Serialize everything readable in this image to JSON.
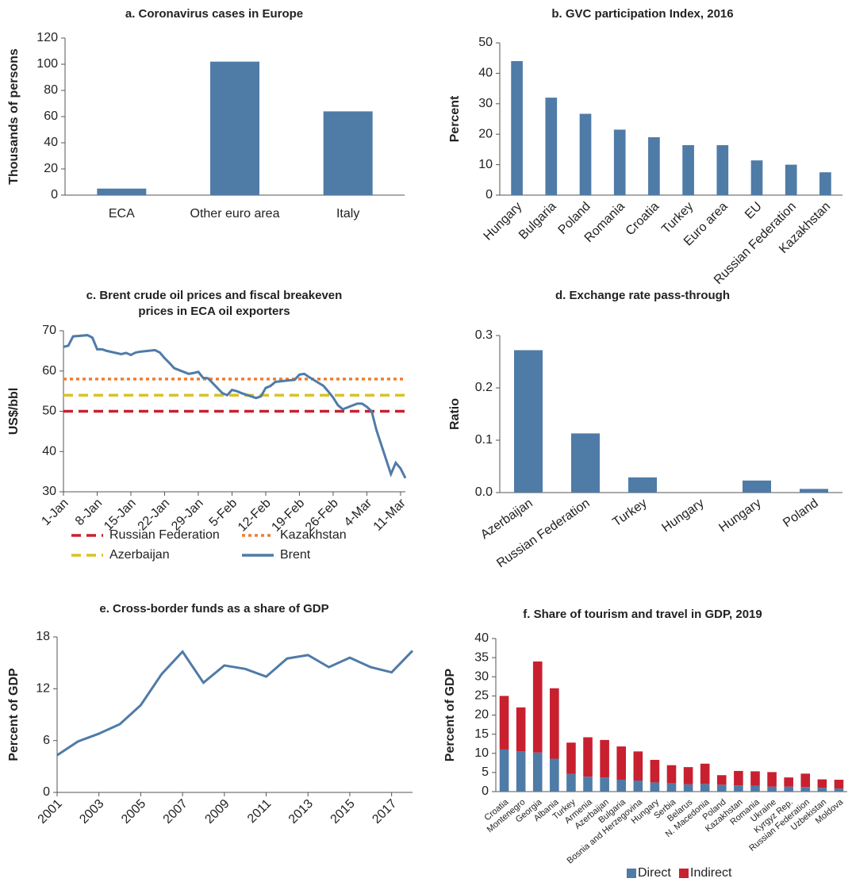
{
  "chart_data": [
    {
      "type": "bar",
      "title": "a. Coronavirus cases in Europe",
      "y_label": "Thousands of persons",
      "categories": [
        "ECA",
        "Other euro area",
        "Italy"
      ],
      "values": [
        5,
        102,
        64
      ],
      "color": "#4f7ba7",
      "ylim": [
        0,
        120
      ],
      "yticks": [
        0,
        20,
        40,
        60,
        80,
        100,
        120
      ]
    },
    {
      "type": "bar",
      "title": "b. GVC participation Index, 2016",
      "y_label": "Percent",
      "categories": [
        "Hungary",
        "Bulgaria",
        "Poland",
        "Romania",
        "Croatia",
        "Turkey",
        "Euro area",
        "EU",
        "Russian Federation",
        "Kazakhstan"
      ],
      "values": [
        44,
        32,
        26.7,
        21.5,
        19,
        16.4,
        16.4,
        11.4,
        10,
        7.5
      ],
      "color": "#4f7ba7",
      "ylim": [
        0,
        50
      ],
      "yticks": [
        0,
        10,
        20,
        30,
        40,
        50
      ]
    },
    {
      "type": "line",
      "title": "c. Brent crude oil prices and fiscal breakeven prices in ECA oil exporters",
      "y_label": "US$/bbl",
      "xlim": [
        "1-Jan",
        "12-Mar"
      ],
      "xticks": [
        "1-Jan",
        "8-Jan",
        "15-Jan",
        "22-Jan",
        "29-Jan",
        "5-Feb",
        "12-Feb",
        "19-Feb",
        "26-Feb",
        "4-Mar",
        "11-Mar"
      ],
      "ylim": [
        30,
        70
      ],
      "yticks": [
        30,
        40,
        50,
        60,
        70
      ],
      "series": [
        {
          "name": "Russian Federation",
          "color": "#c8202f",
          "style": "dashed",
          "x": [
            "1-Jan",
            "12-Mar"
          ],
          "values": [
            50,
            50
          ]
        },
        {
          "name": "Kazakhstan",
          "color": "#ef7d31",
          "style": "dotted",
          "x": [
            "1-Jan",
            "12-Mar"
          ],
          "values": [
            58,
            58
          ]
        },
        {
          "name": "Azerbaijan",
          "color": "#d9c324",
          "style": "dashed",
          "x": [
            "1-Jan",
            "12-Mar"
          ],
          "values": [
            54,
            54
          ]
        },
        {
          "name": "Brent",
          "color": "#4f7ba7",
          "style": "solid",
          "x": [
            "1-Jan",
            "2-Jan",
            "3-Jan",
            "6-Jan",
            "7-Jan",
            "8-Jan",
            "9-Jan",
            "10-Jan",
            "13-Jan",
            "14-Jan",
            "15-Jan",
            "16-Jan",
            "17-Jan",
            "20-Jan",
            "21-Jan",
            "22-Jan",
            "23-Jan",
            "24-Jan",
            "27-Jan",
            "28-Jan",
            "29-Jan",
            "30-Jan",
            "31-Jan",
            "3-Feb",
            "4-Feb",
            "5-Feb",
            "6-Feb",
            "7-Feb",
            "10-Feb",
            "11-Feb",
            "12-Feb",
            "13-Feb",
            "14-Feb",
            "17-Feb",
            "18-Feb",
            "19-Feb",
            "20-Feb",
            "21-Feb",
            "24-Feb",
            "25-Feb",
            "26-Feb",
            "27-Feb",
            "28-Feb",
            "2-Mar",
            "3-Mar",
            "4-Mar",
            "5-Mar",
            "6-Mar",
            "9-Mar",
            "10-Mar",
            "11-Mar",
            "12-Mar"
          ],
          "values": [
            66,
            66.3,
            68.6,
            68.9,
            68.3,
            65.4,
            65.4,
            65.0,
            64.2,
            64.5,
            64.0,
            64.6,
            64.8,
            65.2,
            64.6,
            63.2,
            62.0,
            60.7,
            59.3,
            59.5,
            59.8,
            58.3,
            58.2,
            54.5,
            54.0,
            55.3,
            55.0,
            54.5,
            53.3,
            53.7,
            55.8,
            56.3,
            57.3,
            57.7,
            57.8,
            59.1,
            59.3,
            58.5,
            56.3,
            54.9,
            53.4,
            51.5,
            50.5,
            51.9,
            51.9,
            51.1,
            50.0,
            45.3,
            34.4,
            37.2,
            35.8,
            33.4
          ]
        }
      ]
    },
    {
      "type": "bar",
      "title": "d. Exchange rate pass-through",
      "y_label": "Ratio",
      "categories": [
        "Azerbaijan",
        "Russian Federation",
        "Turkey",
        "Hungary",
        "Hungary",
        "Poland"
      ],
      "values": [
        0.272,
        0.113,
        0.029,
        0,
        0.023,
        0.007
      ],
      "color": "#4f7ba7",
      "ylim": [
        0,
        0.3
      ],
      "yticks": [
        {
          "value": 0,
          "label": "0.0"
        },
        0.1,
        0.2,
        0.3
      ]
    },
    {
      "type": "line",
      "title": "e. Cross-border funds as a share of GDP",
      "y_label": "Percent of GDP",
      "xlim": [
        2001,
        2018
      ],
      "xticks": [
        2001,
        2003,
        2005,
        2007,
        2009,
        2011,
        2013,
        2015,
        2017
      ],
      "ylim": [
        0,
        18
      ],
      "yticks": [
        0,
        6,
        12,
        18
      ],
      "series": [
        {
          "color": "#4f7ba7",
          "style": "solid",
          "x": [
            2001,
            2002,
            2003,
            2004,
            2005,
            2006,
            2007,
            2008,
            2009,
            2010,
            2011,
            2012,
            2013,
            2014,
            2015,
            2016,
            2017,
            2018
          ],
          "values": [
            4.3,
            5.9,
            6.8,
            7.9,
            10.1,
            13.7,
            16.3,
            12.7,
            14.7,
            14.3,
            13.4,
            15.5,
            15.9,
            14.5,
            15.6,
            14.5,
            13.9,
            16.4
          ]
        }
      ]
    },
    {
      "type": "bar",
      "stacked": true,
      "title": "f. Share of tourism and travel in GDP, 2019",
      "y_label": "Percent of GDP",
      "categories": [
        "Croatia",
        "Montenegro",
        "Georgia",
        "Albania",
        "Turkey",
        "Armenia",
        "Azerbaijan",
        "Bulgaria",
        "Bosnia and Herzegovina",
        "Hungary",
        "Serbia",
        "Belarus",
        "N. Macedonia",
        "Poland",
        "Kazakhstan",
        "Romania",
        "Ukraine",
        "Kyrgyz Rep.",
        "Russian Federation",
        "Uzbekistan",
        "Moldova"
      ],
      "ylim": [
        0,
        40
      ],
      "yticks": [
        0,
        5,
        10,
        15,
        20,
        25,
        30,
        35,
        40
      ],
      "series": [
        {
          "name": "Direct",
          "color": "#4f7ba7",
          "values": [
            11,
            10.5,
            10.2,
            8.6,
            4.6,
            3.9,
            3.7,
            3.1,
            2.9,
            2.4,
            2.2,
            1.9,
            2.0,
            1.8,
            1.6,
            1.5,
            1.3,
            1.3,
            1.2,
            1.0,
            0.8
          ]
        },
        {
          "name": "Indirect",
          "color": "#c8202f",
          "values": [
            14,
            11.5,
            23.8,
            18.4,
            8.2,
            10.3,
            9.8,
            8.7,
            7.6,
            5.9,
            4.7,
            4.5,
            5.3,
            2.5,
            3.8,
            3.8,
            3.8,
            2.4,
            3.5,
            2.2,
            2.3
          ]
        }
      ]
    }
  ]
}
